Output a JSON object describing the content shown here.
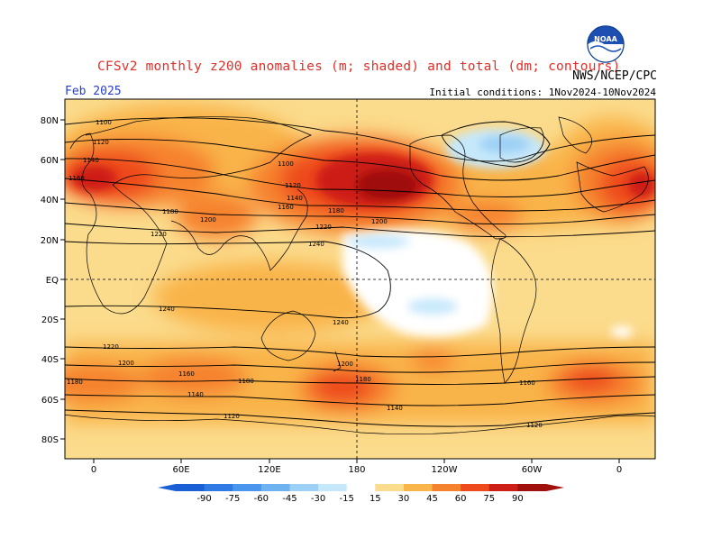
{
  "title": "CFSv2 monthly z200 anomalies (m; shaded) and total (dm; contours)",
  "period": "Feb 2025",
  "agency": "NWS/NCEP/CPC",
  "initial_conditions": "Initial conditions: 1Nov2024-10Nov2024",
  "logo_text": "NOAA",
  "map": {
    "lat_labels": [
      "80N",
      "60N",
      "40N",
      "20N",
      "EQ",
      "20S",
      "40S",
      "60S",
      "80S"
    ],
    "lon_labels": [
      "0",
      "60E",
      "120E",
      "180",
      "120W",
      "60W",
      "0"
    ],
    "contour_labels": [
      "1100",
      "1120",
      "1140",
      "1160",
      "1180",
      "1200",
      "1220",
      "1240",
      "1100",
      "1120",
      "1140",
      "1160",
      "1180",
      "1200",
      "1220",
      "1240",
      "1240",
      "1220",
      "1200",
      "1180",
      "1160",
      "1140",
      "1120",
      "1180",
      "1200",
      "1180",
      "1160",
      "1140",
      "1120"
    ]
  },
  "colorbar": {
    "labels": [
      "-90",
      "-75",
      "-60",
      "-45",
      "-30",
      "-15",
      "15",
      "30",
      "45",
      "60",
      "75",
      "90"
    ],
    "colors": [
      "#1b5fd6",
      "#2f7ae5",
      "#4a96ee",
      "#6fb2f2",
      "#9dd0f6",
      "#c6e8fb",
      "#ffffff",
      "#fbdb8c",
      "#f9b44a",
      "#f6822d",
      "#ee4a1e",
      "#cd1e17",
      "#a0100c"
    ]
  }
}
